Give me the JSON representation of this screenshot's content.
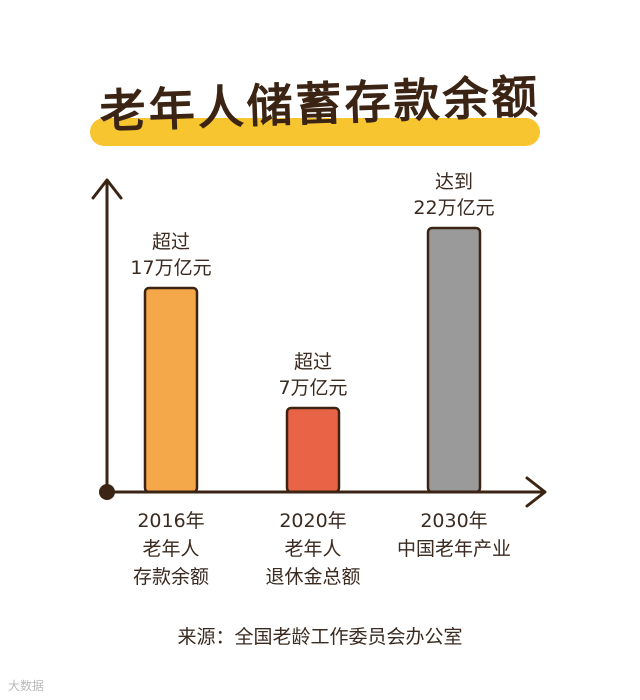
{
  "title": "老年人储蓄存款余额",
  "chart_data": {
    "type": "bar",
    "categories": [
      [
        "2016年",
        "老年人",
        "存款余额"
      ],
      [
        "2020年",
        "老年人",
        "退休金总额"
      ],
      [
        "2030年",
        "中国老年产业"
      ]
    ],
    "values": [
      17,
      7,
      22
    ],
    "unit": "万亿元",
    "annotations": [
      [
        "超过",
        "17万亿元"
      ],
      [
        "超过",
        "7万亿元"
      ],
      [
        "达到",
        "22万亿元"
      ]
    ],
    "colors": [
      "#f5a84a",
      "#e96446",
      "#9a9a9a"
    ],
    "ylim": [
      0,
      24
    ],
    "grid": false,
    "xlabel": "",
    "ylabel": ""
  },
  "source": "来源：全国老龄工作委员会办公室",
  "watermark": "大数据"
}
